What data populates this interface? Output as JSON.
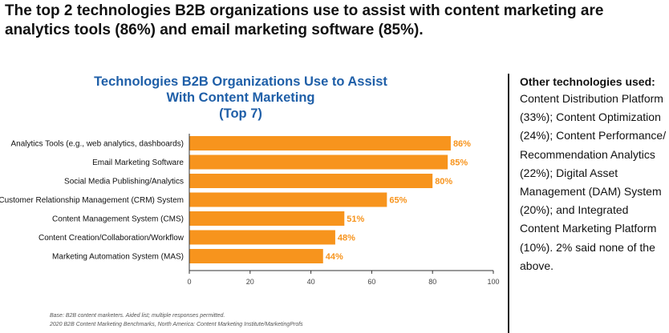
{
  "headline": "The top 2 technologies B2B organizations use to assist with content marketing are analytics tools (86%) and email marketing software (85%).",
  "colors": {
    "bar": "#f7941d",
    "value_label": "#f7941d",
    "title": "#1f5fa8",
    "axis": "#333333",
    "divider": "#222222"
  },
  "chart_data": {
    "type": "bar",
    "orientation": "horizontal",
    "title": [
      "Technologies B2B Organizations Use to Assist",
      "With Content Marketing",
      "(Top 7)"
    ],
    "categories": [
      "Analytics Tools (e.g., web analytics, dashboards)",
      "Email Marketing Software",
      "Social Media Publishing/Analytics",
      "Customer Relationship Management (CRM) System",
      "Content Management System (CMS)",
      "Content Creation/Collaboration/Workflow",
      "Marketing Automation System (MAS)"
    ],
    "values": [
      86,
      85,
      80,
      65,
      51,
      48,
      44
    ],
    "value_labels": [
      "86%",
      "85%",
      "80%",
      "65%",
      "51%",
      "48%",
      "44%"
    ],
    "xticks": [
      0,
      20,
      40,
      60,
      80,
      100
    ],
    "xlim": [
      0,
      100
    ],
    "xlabel": "",
    "ylabel": "",
    "grid": false,
    "legend": "none"
  },
  "footnote": {
    "line1": "Base: B2B content marketers. Aided list; multiple responses permitted.",
    "line2": "2020 B2B Content Marketing Benchmarks, North America: Content Marketing Institute/MarketingProfs"
  },
  "sidebar": {
    "heading": "Other technologies used:",
    "body": "Content Distribution Platform (33%); Content Optimization (24%); Content Performance/ Recommendation Analytics (22%); Digital Asset Management (DAM) System (20%); and Integrated Content Marketing Platform (10%). 2% said none of the above."
  }
}
